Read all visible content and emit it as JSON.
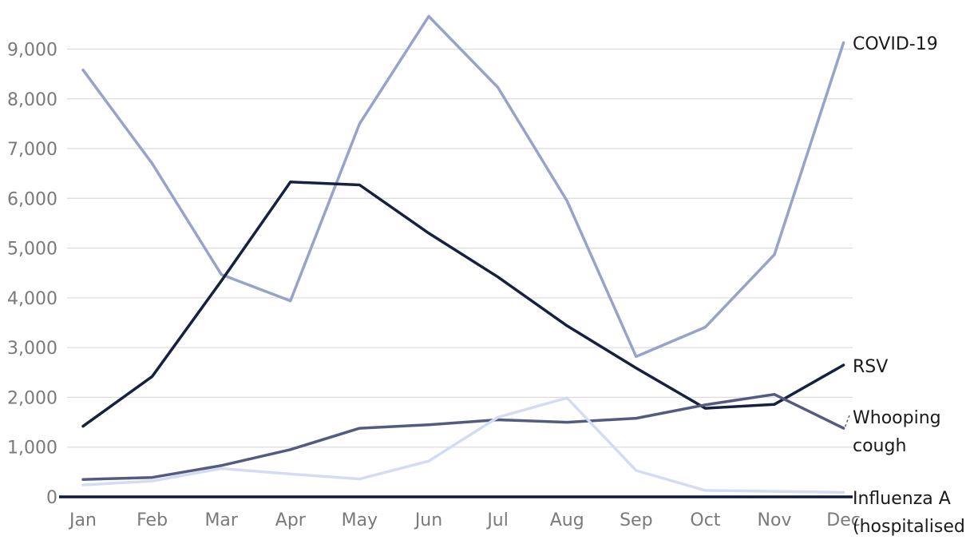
{
  "chart_data": {
    "type": "line",
    "title": "",
    "xlabel": "",
    "ylabel": "",
    "categories": [
      "Jan",
      "Feb",
      "Mar",
      "Apr",
      "May",
      "Jun",
      "Jul",
      "Aug",
      "Sep",
      "Oct",
      "Nov",
      "Dec"
    ],
    "ylim": [
      0,
      9000
    ],
    "yticks": [
      0,
      1000,
      2000,
      3000,
      4000,
      5000,
      6000,
      7000,
      8000,
      9000
    ],
    "ytick_labels": [
      "0",
      "1,000",
      "2,000",
      "3,000",
      "4,000",
      "5,000",
      "6,000",
      "7,000",
      "8,000",
      "9,000"
    ],
    "grid": true,
    "legend": "direct labels at right end of each line",
    "series": [
      {
        "key": "covid",
        "name": "COVID-19",
        "label_lines": [
          "COVID-19"
        ],
        "color": "#97a3c8",
        "values": [
          8580,
          6700,
          4470,
          3940,
          7500,
          9660,
          8230,
          5950,
          2820,
          3410,
          4870,
          9130
        ]
      },
      {
        "key": "rsv",
        "name": "RSV",
        "label_lines": [
          "RSV"
        ],
        "color": "#15213f",
        "values": [
          1420,
          2420,
          4340,
          6330,
          6270,
          5300,
          4420,
          3440,
          2590,
          1780,
          1860,
          2650
        ]
      },
      {
        "key": "whooping",
        "name": "Whooping cough",
        "label_lines": [
          "Whooping",
          "cough"
        ],
        "color": "#535c80",
        "values": [
          350,
          390,
          630,
          950,
          1380,
          1450,
          1550,
          1500,
          1580,
          1850,
          2060,
          1380
        ]
      },
      {
        "key": "influenza",
        "name": "Influenza A (hospitalised",
        "label_lines": [
          "Influenza A",
          "(hospitalised"
        ],
        "color": "#d4dcf4",
        "values": [
          240,
          320,
          570,
          460,
          360,
          720,
          1600,
          1990,
          530,
          130,
          110,
          90
        ]
      }
    ]
  }
}
